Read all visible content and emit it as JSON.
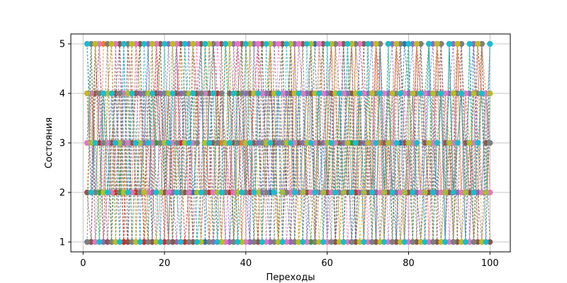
{
  "chart_data": {
    "type": "line",
    "title": "",
    "xlabel": "Переходы",
    "ylabel": "Состояния",
    "xlim": [
      -3,
      105
    ],
    "ylim": [
      0.8,
      5.2
    ],
    "xticks": [
      0,
      20,
      40,
      60,
      80,
      100
    ],
    "yticks": [
      1,
      2,
      3,
      4,
      5
    ],
    "grid": true,
    "line_style": "dashed",
    "markers": "circle",
    "x_range": [
      1,
      100
    ],
    "states": [
      1,
      2,
      3,
      4,
      5
    ],
    "series_count": 10,
    "series_colors": [
      "#1f77b4",
      "#ff7f0e",
      "#2ca02c",
      "#d62728",
      "#9467bd",
      "#8c564b",
      "#e377c2",
      "#7f7f7f",
      "#bcbd22",
      "#17becf"
    ],
    "series": [
      {
        "values": [
          1,
          1,
          5,
          3,
          4,
          2,
          3,
          4,
          2,
          5,
          1,
          4,
          2,
          2,
          3,
          5,
          1,
          4,
          3,
          3,
          1,
          4,
          5,
          2,
          2,
          4,
          2,
          3,
          5,
          1,
          4,
          5,
          3,
          3,
          1,
          1,
          2,
          4,
          3,
          2,
          1,
          5,
          5,
          4,
          3,
          2,
          4,
          1,
          1,
          3,
          5,
          2,
          4,
          4,
          1,
          3,
          5,
          2,
          3,
          1,
          4,
          4,
          2,
          5,
          3,
          1,
          2,
          5,
          4,
          3,
          3,
          1,
          5,
          2,
          4,
          2,
          1,
          3,
          5,
          4,
          4,
          2,
          1,
          3,
          5,
          3,
          2,
          4,
          1,
          5,
          2,
          3,
          4,
          1,
          1,
          5,
          3,
          2,
          4,
          3
        ]
      },
      {
        "values": [
          2,
          4,
          3,
          1,
          5,
          5,
          2,
          3,
          4,
          1,
          3,
          2,
          5,
          4,
          1,
          2,
          3,
          5,
          4,
          2,
          1,
          3,
          2,
          5,
          4,
          1,
          3,
          4,
          2,
          5,
          1,
          2,
          4,
          3,
          5,
          4,
          1,
          2,
          3,
          5,
          4,
          2,
          1,
          3,
          4,
          5,
          2,
          1,
          3,
          4,
          2,
          5,
          1,
          3,
          4,
          2,
          1,
          5,
          3,
          4,
          2,
          5,
          1,
          3,
          4,
          2,
          5,
          3,
          1,
          4,
          2,
          5,
          3,
          1,
          4,
          3,
          5,
          2,
          1,
          4,
          3,
          5,
          2,
          4,
          1,
          3,
          5,
          2,
          4,
          3,
          1,
          5,
          2,
          4,
          3,
          1,
          2,
          5,
          4,
          2
        ]
      },
      {
        "values": [
          3,
          5,
          1,
          2,
          4,
          3,
          1,
          5,
          2,
          4,
          4,
          1,
          3,
          5,
          2,
          1,
          4,
          3,
          5,
          2,
          4,
          1,
          3,
          2,
          5,
          3,
          4,
          1,
          2,
          5,
          3,
          1,
          4,
          2,
          5,
          3,
          1,
          4,
          5,
          2,
          3,
          1,
          4,
          5,
          2,
          1,
          3,
          4,
          5,
          2,
          1,
          3,
          5,
          4,
          2,
          1,
          3,
          4,
          5,
          2,
          3,
          1,
          4,
          2,
          5,
          3,
          1,
          4,
          2,
          5,
          1,
          3,
          4,
          2,
          5,
          1,
          3,
          2,
          4,
          5,
          1,
          3,
          2,
          4,
          5,
          1,
          3,
          4,
          2,
          5,
          1,
          3,
          4,
          2,
          5,
          1,
          3,
          4,
          2,
          5
        ]
      },
      {
        "values": [
          4,
          2,
          5,
          3,
          1,
          4,
          5,
          2,
          3,
          1,
          5,
          4,
          2,
          3,
          1,
          4,
          2,
          5,
          3,
          1,
          4,
          2,
          5,
          3,
          1,
          2,
          5,
          4,
          1,
          3,
          2,
          5,
          4,
          1,
          3,
          2,
          4,
          5,
          1,
          3,
          2,
          4,
          5,
          1,
          3,
          5,
          2,
          4,
          1,
          3,
          5,
          2,
          4,
          1,
          3,
          5,
          2,
          4,
          1,
          3,
          5,
          2,
          4,
          1,
          3,
          5,
          2,
          4,
          1,
          3,
          2,
          5,
          4,
          1,
          3,
          2,
          5,
          4,
          1,
          3,
          2,
          5,
          4,
          1,
          3,
          2,
          5,
          4,
          1,
          3,
          2,
          5,
          4,
          1,
          3,
          2,
          5,
          4,
          1,
          4
        ]
      },
      {
        "values": [
          5,
          3,
          2,
          4,
          1,
          2,
          4,
          1,
          5,
          3,
          2,
          5,
          1,
          4,
          3,
          5,
          2,
          1,
          4,
          3,
          5,
          2,
          1,
          4,
          3,
          5,
          1,
          2,
          4,
          3,
          5,
          1,
          2,
          4,
          3,
          1,
          5,
          3,
          2,
          4,
          1,
          5,
          3,
          2,
          4,
          1,
          5,
          3,
          2,
          4,
          1,
          5,
          2,
          3,
          4,
          5,
          1,
          2,
          3,
          4,
          5,
          1,
          2,
          3,
          4,
          5,
          1,
          2,
          3,
          4,
          5,
          2,
          1,
          3,
          4,
          5,
          2,
          1,
          3,
          4,
          5,
          2,
          1,
          3,
          4,
          5,
          2,
          1,
          3,
          4,
          5,
          2,
          1,
          3,
          4,
          5,
          2,
          1,
          3,
          5
        ]
      },
      {
        "values": [
          2,
          1,
          4,
          5,
          3,
          1,
          3,
          4,
          5,
          2,
          1,
          3,
          4,
          5,
          2,
          3,
          1,
          4,
          5,
          2,
          3,
          1,
          4,
          5,
          2,
          3,
          1,
          4,
          5,
          2,
          4,
          3,
          1,
          5,
          2,
          4,
          3,
          1,
          5,
          2,
          4,
          3,
          1,
          5,
          2,
          4,
          3,
          1,
          5,
          2,
          4,
          1,
          3,
          5,
          2,
          4,
          1,
          3,
          5,
          2,
          4,
          1,
          3,
          5,
          2,
          4,
          1,
          3,
          5,
          2,
          4,
          1,
          5,
          3,
          2,
          4,
          1,
          5,
          3,
          2,
          4,
          1,
          5,
          3,
          2,
          4,
          1,
          5,
          3,
          2,
          4,
          1,
          5,
          3,
          2,
          4,
          1,
          5,
          3,
          1
        ]
      },
      {
        "values": [
          3,
          4,
          1,
          5,
          2,
          3,
          2,
          5,
          1,
          4,
          3,
          2,
          5,
          1,
          4,
          2,
          3,
          5,
          1,
          4,
          2,
          3,
          5,
          1,
          4,
          2,
          3,
          5,
          1,
          4,
          3,
          2,
          5,
          4,
          1,
          3,
          2,
          5,
          4,
          1,
          3,
          2,
          5,
          4,
          1,
          3,
          2,
          5,
          4,
          1,
          2,
          3,
          5,
          4,
          1,
          2,
          3,
          5,
          4,
          1,
          2,
          3,
          5,
          4,
          1,
          2,
          3,
          5,
          4,
          1,
          3,
          5,
          2,
          4,
          1,
          3,
          5,
          2,
          4,
          1,
          3,
          5,
          2,
          4,
          1,
          3,
          5,
          2,
          4,
          1,
          3,
          5,
          2,
          4,
          1,
          3,
          5,
          2,
          4,
          2
        ]
      },
      {
        "values": [
          1,
          5,
          2,
          4,
          3,
          5,
          1,
          3,
          4,
          2,
          5,
          1,
          3,
          2,
          4,
          1,
          5,
          2,
          3,
          4,
          1,
          5,
          3,
          2,
          4,
          1,
          5,
          3,
          4,
          2,
          1,
          5,
          3,
          4,
          2,
          5,
          1,
          3,
          4,
          2,
          5,
          1,
          4,
          3,
          2,
          5,
          1,
          4,
          3,
          2,
          5,
          1,
          4,
          2,
          3,
          5,
          1,
          4,
          2,
          3,
          1,
          5,
          4,
          2,
          3,
          1,
          5,
          4,
          2,
          3,
          1,
          4,
          5,
          2,
          3,
          1,
          4,
          5,
          2,
          3,
          1,
          4,
          5,
          2,
          3,
          1,
          4,
          5,
          2,
          3,
          1,
          4,
          5,
          2,
          3,
          1,
          4,
          5,
          2,
          3
        ]
      },
      {
        "values": [
          4,
          3,
          5,
          1,
          2,
          4,
          5,
          1,
          3,
          2,
          4,
          5,
          1,
          3,
          2,
          4,
          5,
          1,
          2,
          3,
          4,
          5,
          2,
          1,
          3,
          4,
          5,
          2,
          1,
          3,
          5,
          4,
          2,
          1,
          3,
          5,
          4,
          2,
          1,
          3,
          5,
          4,
          2,
          1,
          3,
          5,
          4,
          1,
          2,
          3,
          5,
          4,
          1,
          2,
          3,
          5,
          4,
          1,
          2,
          3,
          5,
          4,
          1,
          2,
          3,
          5,
          4,
          1,
          2,
          3,
          4,
          5,
          1,
          2,
          3,
          4,
          5,
          1,
          2,
          3,
          4,
          5,
          1,
          2,
          3,
          4,
          5,
          1,
          2,
          3,
          4,
          5,
          1,
          2,
          3,
          4,
          5,
          1,
          2,
          4
        ]
      },
      {
        "values": [
          5,
          2,
          3,
          1,
          4,
          2,
          4,
          3,
          1,
          5,
          2,
          4,
          3,
          1,
          5,
          3,
          4,
          2,
          1,
          5,
          3,
          4,
          2,
          1,
          5,
          3,
          4,
          1,
          2,
          5,
          3,
          4,
          1,
          2,
          5,
          3,
          4,
          1,
          2,
          5,
          3,
          2,
          4,
          1,
          5,
          3,
          2,
          4,
          1,
          5,
          3,
          2,
          4,
          1,
          5,
          3,
          2,
          4,
          1,
          5,
          3,
          2,
          4,
          1,
          5,
          2,
          3,
          4,
          1,
          5,
          2,
          3,
          4,
          1,
          5,
          2,
          3,
          4,
          1,
          5,
          2,
          3,
          4,
          1,
          5,
          2,
          3,
          4,
          1,
          5,
          2,
          3,
          4,
          1,
          5,
          2,
          3,
          4,
          1,
          5
        ]
      }
    ]
  }
}
